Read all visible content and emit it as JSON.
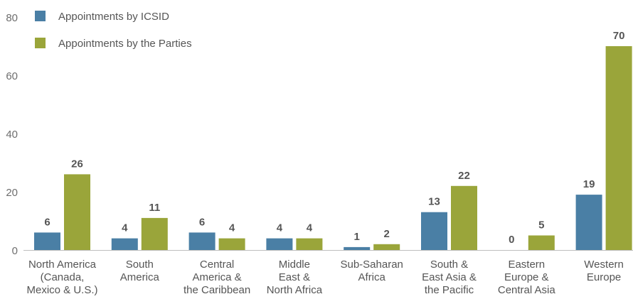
{
  "chart_data": {
    "type": "bar",
    "title": "",
    "xlabel": "",
    "ylabel": "",
    "ylim": [
      0,
      80
    ],
    "yticks": [
      0,
      20,
      40,
      60,
      80
    ],
    "grid": false,
    "legend_position": "top-left",
    "categories": [
      [
        "North America",
        "(Canada,",
        "Mexico & U.S.)"
      ],
      [
        "South",
        "America"
      ],
      [
        "Central",
        "America &",
        "the Caribbean"
      ],
      [
        "Middle",
        "East &",
        "North Africa"
      ],
      [
        "Sub-Saharan",
        "Africa"
      ],
      [
        "South &",
        "East Asia &",
        "the Pacific"
      ],
      [
        "Eastern",
        "Europe &",
        "Central Asia"
      ],
      [
        "Western",
        "Europe"
      ]
    ],
    "series": [
      {
        "name": "Appointments by ICSID",
        "color": "#4a7fa5",
        "values": [
          6,
          4,
          6,
          4,
          1,
          13,
          0,
          19
        ]
      },
      {
        "name": "Appointments by the Parties",
        "color": "#9aa53a",
        "values": [
          26,
          11,
          4,
          4,
          2,
          22,
          5,
          70
        ]
      }
    ]
  }
}
